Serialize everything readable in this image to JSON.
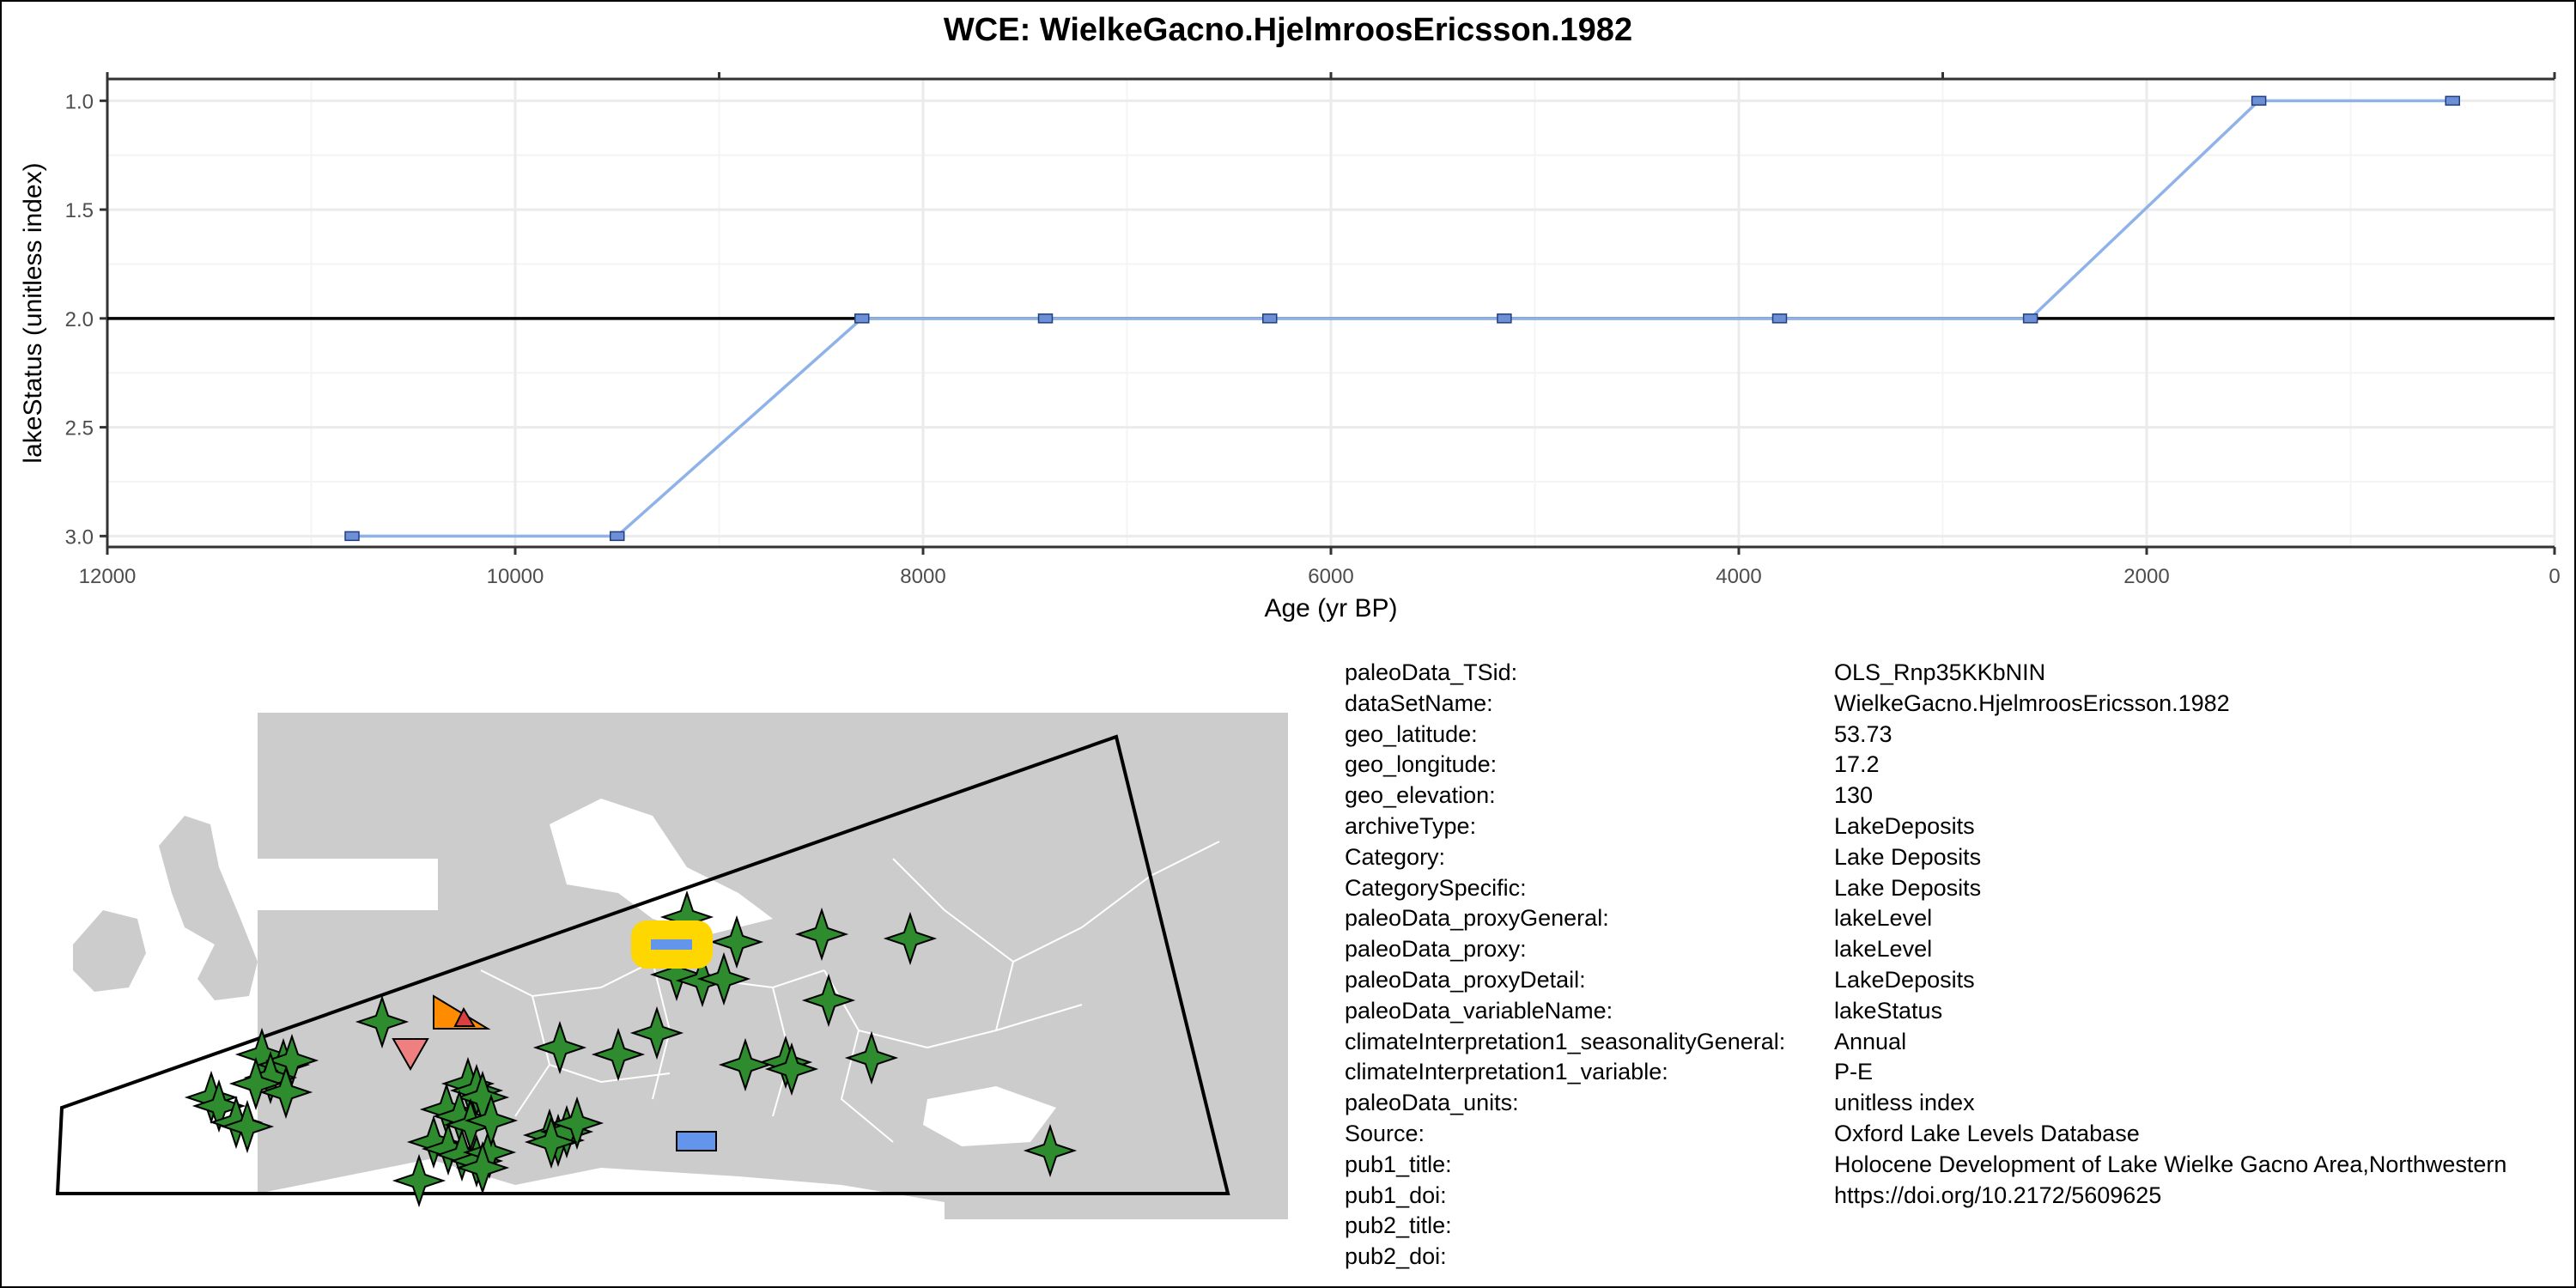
{
  "title": "WCE: WielkeGacno.HjelmroosEricsson.1982",
  "chart_data": {
    "type": "line",
    "xlabel": "Age (yr BP)",
    "ylabel": "lakeStatus (unitless index)",
    "x_reversed": true,
    "y_reversed": true,
    "xlim": [
      12000,
      0
    ],
    "ylim": [
      3.05,
      0.9
    ],
    "x_ticks": [
      12000,
      10000,
      8000,
      6000,
      4000,
      2000,
      0
    ],
    "y_ticks": [
      1.0,
      1.5,
      2.0,
      2.5,
      3.0
    ],
    "x_tick_labels": [
      "12000",
      "10000",
      "8000",
      "6000",
      "4000",
      "2000",
      "0"
    ],
    "y_tick_labels": [
      "1.0",
      "1.5",
      "2.0",
      "2.5",
      "3.0"
    ],
    "reference_line_y": 2.0,
    "grid": true,
    "line_color": "#8fb3e8",
    "marker_color": "#6d8fd6",
    "series": [
      {
        "x": [
          10800,
          9500,
          8300,
          7400,
          6300,
          5150,
          3800,
          2570,
          1450,
          500
        ],
        "y": [
          3,
          3,
          2,
          2,
          2,
          2,
          2,
          2,
          1,
          1
        ]
      }
    ]
  },
  "map": {
    "land_color": "#cccccc",
    "site_marker_color": "#2e8b2e",
    "highlight_color": "#ffd700",
    "current_site_color": "#6495ed",
    "other_markers": [
      "orange-triangle",
      "pink-down-triangle",
      "blue-rectangle"
    ]
  },
  "metadata": [
    {
      "key": "paleoData_TSid:",
      "value": "OLS_Rnp35KKbNIN"
    },
    {
      "key": "dataSetName:",
      "value": "WielkeGacno.HjelmroosEricsson.1982"
    },
    {
      "key": "geo_latitude:",
      "value": "53.73"
    },
    {
      "key": "geo_longitude:",
      "value": "17.2"
    },
    {
      "key": "geo_elevation:",
      "value": "130"
    },
    {
      "key": "archiveType:",
      "value": "LakeDeposits"
    },
    {
      "key": "Category:",
      "value": "Lake Deposits"
    },
    {
      "key": "CategorySpecific:",
      "value": "Lake Deposits"
    },
    {
      "key": "paleoData_proxyGeneral:",
      "value": "lakeLevel"
    },
    {
      "key": "paleoData_proxy:",
      "value": "lakeLevel"
    },
    {
      "key": "paleoData_proxyDetail:",
      "value": "LakeDeposits"
    },
    {
      "key": "paleoData_variableName:",
      "value": "lakeStatus"
    },
    {
      "key": "climateInterpretation1_seasonalityGeneral:",
      "value": "Annual"
    },
    {
      "key": "climateInterpretation1_variable:",
      "value": "P-E"
    },
    {
      "key": "paleoData_units:",
      "value": "unitless index"
    },
    {
      "key": "Source:",
      "value": "Oxford Lake Levels Database"
    },
    {
      "key": "pub1_title:",
      "value": "Holocene Development of Lake Wielke Gacno Area,Northwestern"
    },
    {
      "key": "pub1_doi:",
      "value": "https://doi.org/10.2172/5609625"
    },
    {
      "key": "pub2_title:",
      "value": ""
    },
    {
      "key": "pub2_doi:",
      "value": ""
    }
  ]
}
